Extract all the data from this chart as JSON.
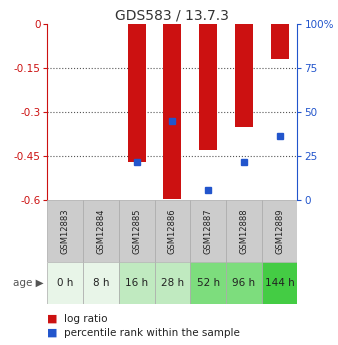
{
  "title": "GDS583 / 13.7.3",
  "samples": [
    "GSM12883",
    "GSM12884",
    "GSM12885",
    "GSM12886",
    "GSM12887",
    "GSM12888",
    "GSM12889"
  ],
  "ages": [
    "0 h",
    "8 h",
    "16 h",
    "28 h",
    "52 h",
    "96 h",
    "144 h"
  ],
  "log_ratio": [
    0.0,
    0.0,
    -0.47,
    -0.595,
    -0.43,
    -0.35,
    -0.12
  ],
  "percentile_pos": [
    null,
    null,
    -0.47,
    -0.33,
    -0.565,
    -0.47,
    -0.38
  ],
  "ylim": [
    -0.6,
    0.0
  ],
  "yticks_left": [
    0,
    -0.15,
    -0.3,
    -0.45,
    -0.6
  ],
  "ytick_left_labels": [
    "0",
    "-0.15",
    "-0.3",
    "-0.45",
    "-0.6"
  ],
  "yticks_right_vals": [
    "100%",
    "75",
    "50",
    "25",
    "0"
  ],
  "yticks_right_pos": [
    0.0,
    -0.15,
    -0.3,
    -0.45,
    -0.6
  ],
  "bar_color": "#cc1111",
  "blue_color": "#2255cc",
  "age_bg_colors": [
    "#e8f5e8",
    "#e8f5e8",
    "#c0eac0",
    "#c0eac0",
    "#7ddd7d",
    "#7ddd7d",
    "#44cc44"
  ],
  "sample_bg_color": "#cccccc",
  "grid_color": "#888888",
  "title_color": "#333333",
  "left_axis_color": "#cc1111",
  "right_axis_color": "#2255cc",
  "bar_width": 0.5
}
